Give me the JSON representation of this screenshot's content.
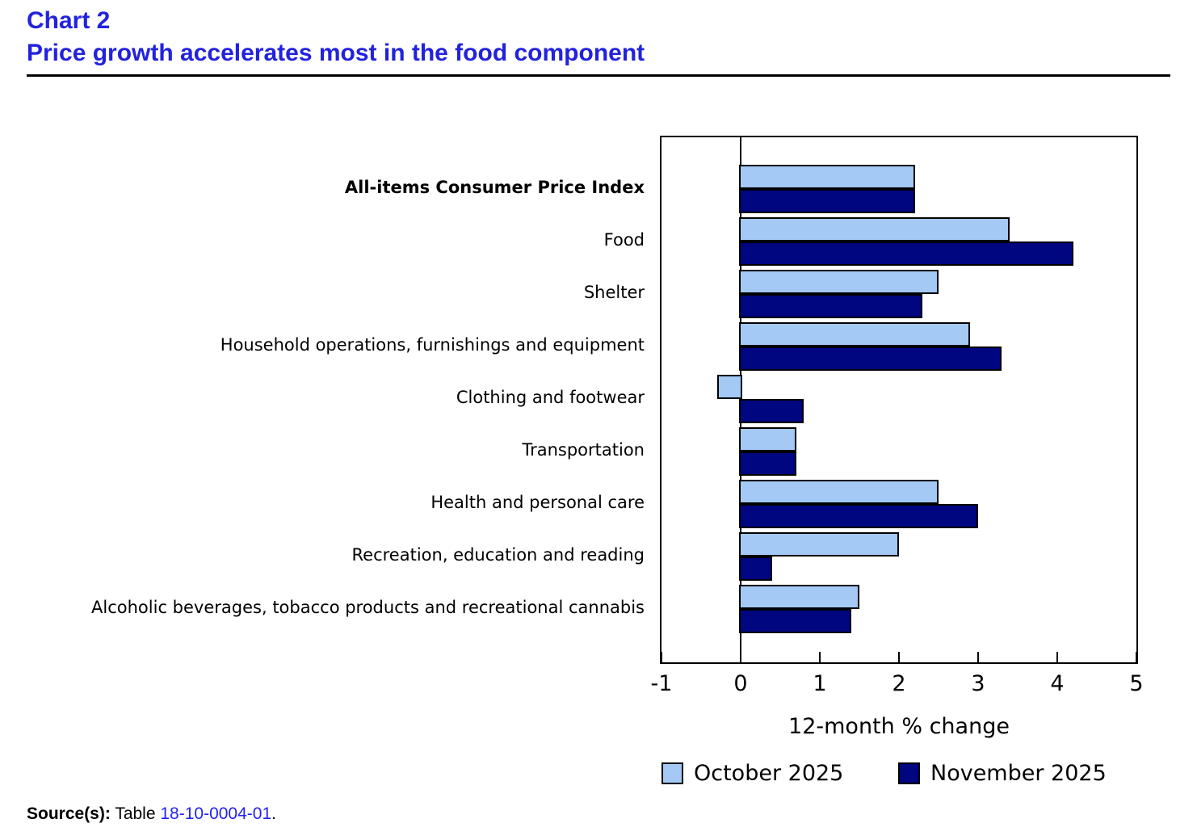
{
  "header": {
    "chart_label": "Chart 2",
    "title": "Price growth accelerates most in the food component",
    "title_color": "#2222DE"
  },
  "chart_data": {
    "type": "bar",
    "orientation": "horizontal",
    "title": "Price growth accelerates most in the food component",
    "categories": [
      "All-items Consumer Price Index",
      "Food",
      "Shelter",
      "Household operations, furnishings and equipment",
      "Clothing and footwear",
      "Transportation",
      "Health and personal care",
      "Recreation, education and reading",
      "Alcoholic beverages, tobacco products and recreational cannabis"
    ],
    "bold_categories": [
      "All-items Consumer Price Index"
    ],
    "series": [
      {
        "name": "October 2025",
        "color": "#A3C9F4",
        "values": [
          2.2,
          3.4,
          2.5,
          2.9,
          -0.3,
          0.7,
          2.5,
          2.0,
          1.5
        ]
      },
      {
        "name": "November 2025",
        "color": "#000680",
        "values": [
          2.2,
          4.2,
          2.3,
          3.3,
          0.8,
          0.7,
          3.0,
          0.4,
          1.4
        ]
      }
    ],
    "xlabel": "12-month % change",
    "xlim": [
      -1,
      5
    ],
    "xticks": [
      -1,
      0,
      1,
      2,
      3,
      4,
      5
    ],
    "grid": false,
    "legend_position": "bottom"
  },
  "source": {
    "prefix": "Source(s):",
    "text": " Table ",
    "link": "18-10-0004-01",
    "suffix": ".",
    "link_color": "#2323F3"
  }
}
